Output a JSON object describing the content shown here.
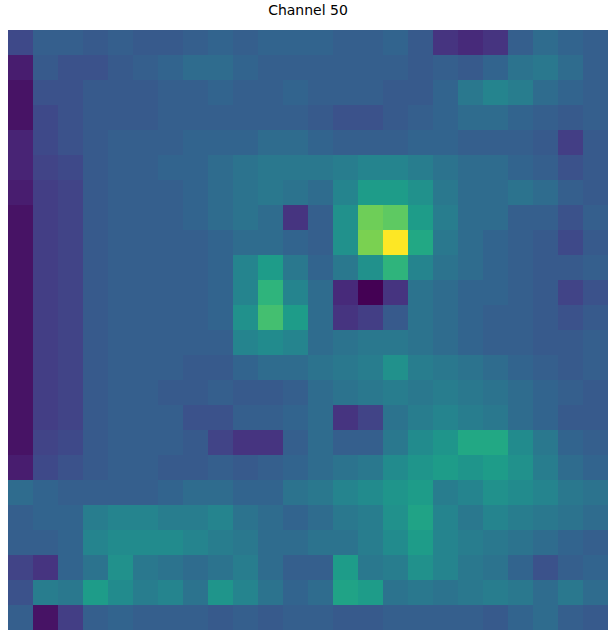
{
  "chart_data": {
    "type": "heatmap",
    "title": "Channel 50",
    "color": "viridis",
    "tick_labels": false,
    "cells": [
      [
        22,
        30,
        30,
        28,
        30,
        28,
        28,
        30,
        32,
        30,
        32,
        32,
        32,
        30,
        30,
        32,
        28,
        15,
        12,
        15,
        30,
        35,
        32,
        30
      ],
      [
        8,
        28,
        25,
        25,
        28,
        30,
        32,
        35,
        35,
        32,
        30,
        30,
        30,
        30,
        30,
        30,
        28,
        30,
        28,
        32,
        38,
        40,
        35,
        30
      ],
      [
        5,
        25,
        25,
        28,
        28,
        28,
        30,
        30,
        32,
        30,
        30,
        32,
        30,
        30,
        30,
        28,
        28,
        32,
        40,
        45,
        42,
        35,
        32,
        30
      ],
      [
        5,
        22,
        25,
        28,
        28,
        28,
        30,
        30,
        30,
        30,
        30,
        30,
        28,
        25,
        25,
        28,
        30,
        32,
        35,
        35,
        32,
        30,
        28,
        30
      ],
      [
        10,
        22,
        25,
        28,
        30,
        30,
        30,
        32,
        32,
        32,
        35,
        35,
        32,
        30,
        30,
        30,
        32,
        32,
        30,
        30,
        30,
        28,
        18,
        28
      ],
      [
        10,
        20,
        22,
        28,
        30,
        30,
        32,
        32,
        35,
        38,
        40,
        40,
        40,
        42,
        45,
        45,
        42,
        38,
        35,
        35,
        32,
        30,
        25,
        28
      ],
      [
        8,
        18,
        20,
        28,
        30,
        30,
        30,
        32,
        35,
        38,
        40,
        38,
        35,
        45,
        55,
        55,
        50,
        40,
        35,
        35,
        38,
        35,
        30,
        28
      ],
      [
        5,
        18,
        20,
        28,
        30,
        30,
        30,
        32,
        35,
        38,
        35,
        15,
        30,
        50,
        78,
        75,
        55,
        42,
        35,
        35,
        30,
        30,
        25,
        30
      ],
      [
        5,
        18,
        20,
        28,
        30,
        30,
        30,
        30,
        32,
        35,
        35,
        32,
        30,
        50,
        80,
        100,
        60,
        40,
        35,
        32,
        30,
        28,
        22,
        28
      ],
      [
        5,
        18,
        20,
        28,
        30,
        30,
        30,
        30,
        32,
        45,
        55,
        40,
        32,
        40,
        50,
        65,
        45,
        38,
        35,
        32,
        30,
        28,
        28,
        30
      ],
      [
        5,
        18,
        20,
        28,
        30,
        30,
        30,
        30,
        32,
        45,
        65,
        45,
        35,
        12,
        0,
        15,
        38,
        35,
        32,
        32,
        30,
        28,
        20,
        25
      ],
      [
        5,
        18,
        20,
        28,
        30,
        30,
        30,
        30,
        32,
        50,
        70,
        55,
        35,
        15,
        18,
        28,
        38,
        35,
        32,
        30,
        30,
        28,
        25,
        28
      ],
      [
        5,
        18,
        20,
        28,
        30,
        30,
        30,
        30,
        30,
        45,
        48,
        45,
        35,
        38,
        40,
        40,
        38,
        35,
        32,
        30,
        30,
        28,
        28,
        30
      ],
      [
        5,
        18,
        20,
        28,
        30,
        30,
        30,
        28,
        28,
        32,
        35,
        35,
        38,
        40,
        42,
        50,
        42,
        40,
        38,
        35,
        32,
        30,
        28,
        30
      ],
      [
        5,
        18,
        20,
        28,
        30,
        30,
        28,
        28,
        30,
        28,
        28,
        30,
        35,
        38,
        40,
        42,
        40,
        42,
        40,
        38,
        35,
        32,
        30,
        28
      ],
      [
        5,
        18,
        20,
        28,
        30,
        30,
        30,
        25,
        25,
        30,
        30,
        32,
        35,
        15,
        20,
        38,
        42,
        45,
        42,
        40,
        35,
        32,
        28,
        28
      ],
      [
        5,
        20,
        22,
        28,
        30,
        30,
        30,
        28,
        20,
        15,
        15,
        30,
        35,
        30,
        30,
        40,
        48,
        52,
        60,
        60,
        48,
        40,
        32,
        30
      ],
      [
        8,
        22,
        25,
        28,
        30,
        30,
        28,
        28,
        30,
        28,
        30,
        32,
        35,
        38,
        40,
        48,
        52,
        55,
        52,
        55,
        50,
        42,
        35,
        32
      ],
      [
        35,
        32,
        30,
        30,
        30,
        30,
        32,
        35,
        35,
        32,
        32,
        38,
        40,
        45,
        48,
        52,
        55,
        42,
        45,
        50,
        48,
        45,
        40,
        38
      ],
      [
        30,
        32,
        32,
        42,
        45,
        45,
        42,
        42,
        45,
        38,
        35,
        32,
        35,
        40,
        42,
        50,
        58,
        45,
        40,
        45,
        42,
        40,
        38,
        35
      ],
      [
        30,
        30,
        32,
        45,
        48,
        48,
        48,
        45,
        42,
        40,
        35,
        35,
        38,
        38,
        42,
        48,
        55,
        45,
        42,
        40,
        38,
        35,
        32,
        30
      ],
      [
        20,
        15,
        32,
        38,
        50,
        40,
        38,
        35,
        38,
        42,
        35,
        30,
        30,
        55,
        40,
        42,
        50,
        45,
        40,
        38,
        32,
        25,
        30,
        32
      ],
      [
        25,
        42,
        40,
        55,
        48,
        42,
        45,
        38,
        52,
        45,
        38,
        32,
        35,
        58,
        55,
        38,
        40,
        38,
        40,
        42,
        40,
        35,
        40,
        35
      ],
      [
        30,
        5,
        18,
        30,
        32,
        30,
        30,
        30,
        28,
        30,
        28,
        30,
        30,
        28,
        28,
        30,
        30,
        30,
        30,
        28,
        32,
        35,
        30,
        28
      ]
    ]
  }
}
